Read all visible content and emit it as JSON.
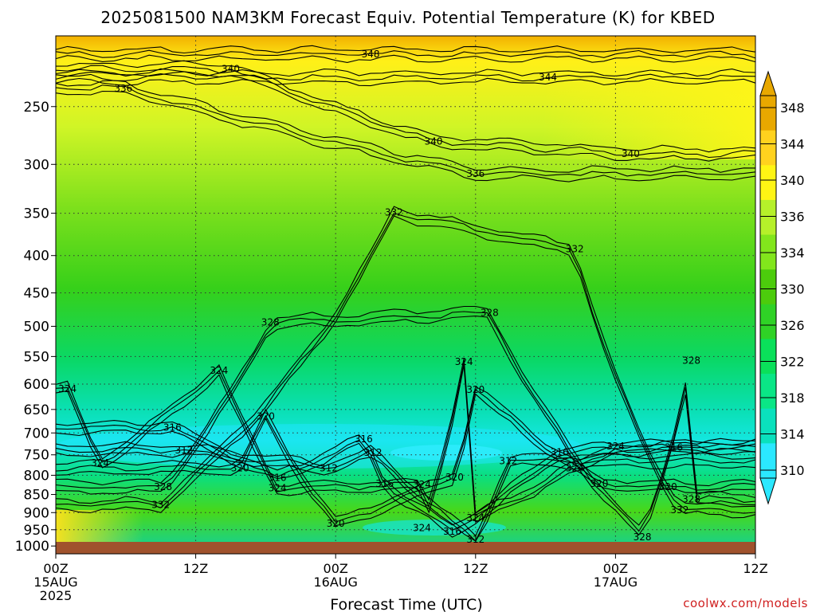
{
  "chart_data": {
    "type": "contour-time-height",
    "title": "2025081500 NAM3KM Forecast Equiv. Potential Temperature (K) for KBED",
    "xlabel": "Forecast Time (UTC)",
    "credit": "coolwx.com/models",
    "x_ticks": [
      {
        "hour": 0,
        "lines": [
          "00Z",
          "15AUG",
          "2025"
        ]
      },
      {
        "hour": 12,
        "lines": [
          "12Z"
        ]
      },
      {
        "hour": 24,
        "lines": [
          "00Z",
          "16AUG"
        ]
      },
      {
        "hour": 36,
        "lines": [
          "12Z"
        ]
      },
      {
        "hour": 48,
        "lines": [
          "00Z",
          "17AUG"
        ]
      },
      {
        "hour": 60,
        "lines": [
          "12Z"
        ]
      }
    ],
    "xlim": [
      0,
      60
    ],
    "y_scale": "log-pressure",
    "ylim": [
      1025,
      200
    ],
    "y_ticks": [
      250,
      300,
      350,
      400,
      450,
      500,
      550,
      600,
      650,
      700,
      750,
      800,
      850,
      900,
      950,
      1000
    ],
    "grid": "dotted",
    "colorbar": {
      "ticks": [
        348,
        344,
        340,
        336,
        334,
        330,
        326,
        322,
        318,
        314,
        310
      ],
      "colors": [
        "#e8a800",
        "#ffd21e",
        "#fff514",
        "#b6f02a",
        "#82e61c",
        "#4ccc0c",
        "#2fd226",
        "#0ae05a",
        "#0ae686",
        "#0ae1bd",
        "#2be8ff"
      ]
    },
    "contour_labels": [
      {
        "value": 348,
        "hour": 27,
        "p": 212
      },
      {
        "value": 340,
        "hour": 15,
        "p": 222
      },
      {
        "value": 344,
        "hour": 42.2,
        "p": 228
      },
      {
        "value": 336,
        "hour": 5.8,
        "p": 236
      },
      {
        "value": 340,
        "hour": 32.4,
        "p": 279
      },
      {
        "value": 340,
        "hour": 49.3,
        "p": 290
      },
      {
        "value": 336,
        "hour": 36,
        "p": 309
      },
      {
        "value": 332,
        "hour": 29,
        "p": 349
      },
      {
        "value": 332,
        "hour": 44.5,
        "p": 392
      },
      {
        "value": 328,
        "hour": 37.2,
        "p": 479
      },
      {
        "value": 328,
        "hour": 18.4,
        "p": 494
      },
      {
        "value": 324,
        "hour": 35,
        "p": 559
      },
      {
        "value": 328,
        "hour": 54.5,
        "p": 557
      },
      {
        "value": 324,
        "hour": 14,
        "p": 575
      },
      {
        "value": 324,
        "hour": 1,
        "p": 609
      },
      {
        "value": 320,
        "hour": 36,
        "p": 611
      },
      {
        "value": 320,
        "hour": 18,
        "p": 664
      },
      {
        "value": 316,
        "hour": 10,
        "p": 688
      },
      {
        "value": 316,
        "hour": 26.4,
        "p": 714
      },
      {
        "value": 324,
        "hour": 48,
        "p": 730
      },
      {
        "value": 312,
        "hour": 11,
        "p": 739
      },
      {
        "value": 316,
        "hour": 53,
        "p": 733
      },
      {
        "value": 312,
        "hour": 27.2,
        "p": 745
      },
      {
        "value": 316,
        "hour": 43.2,
        "p": 744
      },
      {
        "value": 324,
        "hour": 3.8,
        "p": 770
      },
      {
        "value": 312,
        "hour": 38.8,
        "p": 765
      },
      {
        "value": 320,
        "hour": 15.8,
        "p": 782
      },
      {
        "value": 312,
        "hour": 23.4,
        "p": 782
      },
      {
        "value": 324,
        "hour": 44.5,
        "p": 782
      },
      {
        "value": 316,
        "hour": 19,
        "p": 806
      },
      {
        "value": 320,
        "hour": 34.2,
        "p": 805
      },
      {
        "value": 316,
        "hour": 28.2,
        "p": 822
      },
      {
        "value": 324,
        "hour": 31.4,
        "p": 824
      },
      {
        "value": 320,
        "hour": 46.6,
        "p": 822
      },
      {
        "value": 324,
        "hour": 19,
        "p": 833
      },
      {
        "value": 320,
        "hour": 52.5,
        "p": 830
      },
      {
        "value": 328,
        "hour": 9.2,
        "p": 830
      },
      {
        "value": 328,
        "hour": 54.5,
        "p": 863
      },
      {
        "value": 332,
        "hour": 9,
        "p": 878
      },
      {
        "value": 332,
        "hour": 53.5,
        "p": 893
      },
      {
        "value": 324,
        "hour": 36,
        "p": 915
      },
      {
        "value": 320,
        "hour": 24,
        "p": 932
      },
      {
        "value": 324,
        "hour": 31.4,
        "p": 944
      },
      {
        "value": 316,
        "hour": 34,
        "p": 955
      },
      {
        "value": 312,
        "hour": 36,
        "p": 980
      },
      {
        "value": 328,
        "hour": 50.3,
        "p": 972
      }
    ]
  }
}
